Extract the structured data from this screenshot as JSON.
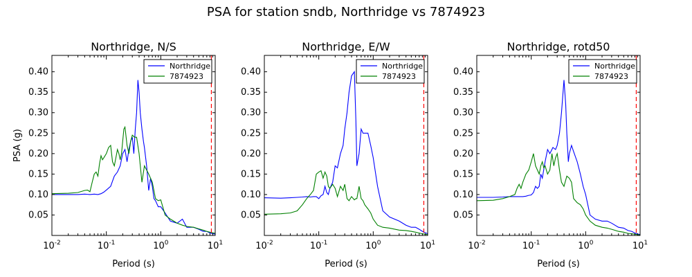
{
  "figure": {
    "suptitle": "PSA for station sndb, Northridge vs 7874923"
  },
  "colors": {
    "series_a": "#0000ff",
    "series_b": "#008000",
    "limit_line": "#ff0000"
  },
  "chart_data": [
    {
      "type": "line",
      "title": "Northridge, N/S",
      "xlabel": "Period (s)",
      "ylabel": "PSA (g)",
      "xscale": "log",
      "xlim": [
        0.01,
        10
      ],
      "ylim": [
        0,
        0.44
      ],
      "xticks": [
        {
          "v": 0.01,
          "base": "10",
          "exp": "-2"
        },
        {
          "v": 0.1,
          "base": "10",
          "exp": "-1"
        },
        {
          "v": 1,
          "base": "10",
          "exp": "0"
        },
        {
          "v": 10,
          "base": "10",
          "exp": "1"
        }
      ],
      "yticks": [
        "0.05",
        "0.10",
        "0.15",
        "0.20",
        "0.25",
        "0.30",
        "0.35",
        "0.40"
      ],
      "legend": {
        "position": "upper-right"
      },
      "vline": {
        "x": 8.5,
        "style": "dashed"
      },
      "series": [
        {
          "name": "Northridge",
          "x": [
            0.01,
            0.02,
            0.03,
            0.04,
            0.05,
            0.06,
            0.07,
            0.08,
            0.09,
            0.1,
            0.12,
            0.14,
            0.16,
            0.18,
            0.2,
            0.22,
            0.24,
            0.26,
            0.28,
            0.3,
            0.32,
            0.34,
            0.36,
            0.38,
            0.4,
            0.42,
            0.45,
            0.48,
            0.5,
            0.55,
            0.6,
            0.65,
            0.7,
            0.75,
            0.8,
            0.9,
            1.0,
            1.2,
            1.5,
            2.0,
            2.5,
            3.0,
            4.0,
            5.0,
            6.0,
            7.0,
            8.0,
            10.0
          ],
          "y": [
            0.1,
            0.1,
            0.1,
            0.101,
            0.1,
            0.101,
            0.1,
            0.102,
            0.106,
            0.111,
            0.12,
            0.145,
            0.155,
            0.17,
            0.2,
            0.21,
            0.18,
            0.21,
            0.23,
            0.24,
            0.2,
            0.26,
            0.3,
            0.38,
            0.35,
            0.3,
            0.26,
            0.23,
            0.215,
            0.17,
            0.11,
            0.14,
            0.12,
            0.09,
            0.085,
            0.07,
            0.07,
            0.055,
            0.035,
            0.03,
            0.04,
            0.02,
            0.02,
            0.015,
            0.01,
            0.01,
            0.006,
            0.003
          ]
        },
        {
          "name": "7874923",
          "x": [
            0.01,
            0.02,
            0.03,
            0.04,
            0.045,
            0.05,
            0.055,
            0.06,
            0.065,
            0.07,
            0.075,
            0.08,
            0.085,
            0.09,
            0.1,
            0.11,
            0.12,
            0.13,
            0.14,
            0.15,
            0.16,
            0.17,
            0.18,
            0.19,
            0.2,
            0.21,
            0.22,
            0.24,
            0.26,
            0.28,
            0.3,
            0.33,
            0.36,
            0.4,
            0.45,
            0.5,
            0.55,
            0.6,
            0.7,
            0.8,
            0.9,
            1.0,
            1.2,
            1.5,
            2.0,
            2.5,
            3.0,
            4.0,
            5.0,
            6.0,
            7.0,
            8.0,
            10.0
          ],
          "y": [
            0.102,
            0.103,
            0.105,
            0.11,
            0.111,
            0.107,
            0.13,
            0.15,
            0.155,
            0.145,
            0.175,
            0.195,
            0.185,
            0.19,
            0.2,
            0.215,
            0.22,
            0.18,
            0.17,
            0.19,
            0.21,
            0.2,
            0.185,
            0.2,
            0.23,
            0.26,
            0.265,
            0.22,
            0.2,
            0.23,
            0.245,
            0.24,
            0.24,
            0.2,
            0.13,
            0.17,
            0.16,
            0.15,
            0.13,
            0.09,
            0.085,
            0.087,
            0.05,
            0.04,
            0.03,
            0.025,
            0.022,
            0.02,
            0.016,
            0.013,
            0.01,
            0.008,
            0.005
          ]
        }
      ]
    },
    {
      "type": "line",
      "title": "Northridge, E/W",
      "xlabel": "Period (s)",
      "ylabel": "",
      "xscale": "log",
      "xlim": [
        0.01,
        10
      ],
      "ylim": [
        0,
        0.44
      ],
      "xticks": [
        {
          "v": 0.01,
          "base": "10",
          "exp": "-2"
        },
        {
          "v": 0.1,
          "base": "10",
          "exp": "-1"
        },
        {
          "v": 1,
          "base": "10",
          "exp": "0"
        },
        {
          "v": 10,
          "base": "10",
          "exp": "1"
        }
      ],
      "yticks": [
        "0.05",
        "0.10",
        "0.15",
        "0.20",
        "0.25",
        "0.30",
        "0.35",
        "0.40"
      ],
      "legend": {
        "position": "upper-right"
      },
      "vline": {
        "x": 8.5,
        "style": "dashed"
      },
      "series": [
        {
          "name": "Northridge",
          "x": [
            0.01,
            0.02,
            0.03,
            0.04,
            0.05,
            0.06,
            0.07,
            0.08,
            0.09,
            0.1,
            0.11,
            0.12,
            0.13,
            0.14,
            0.15,
            0.16,
            0.18,
            0.2,
            0.22,
            0.25,
            0.28,
            0.3,
            0.33,
            0.36,
            0.4,
            0.45,
            0.48,
            0.5,
            0.55,
            0.6,
            0.65,
            0.7,
            0.8,
            0.9,
            1.0,
            1.2,
            1.5,
            2.0,
            3.0,
            4.0,
            5.0,
            6.0,
            7.0,
            8.0,
            10.0
          ],
          "y": [
            0.092,
            0.091,
            0.092,
            0.093,
            0.094,
            0.095,
            0.094,
            0.095,
            0.095,
            0.09,
            0.097,
            0.1,
            0.12,
            0.105,
            0.1,
            0.115,
            0.13,
            0.17,
            0.165,
            0.2,
            0.22,
            0.26,
            0.3,
            0.35,
            0.39,
            0.4,
            0.28,
            0.17,
            0.2,
            0.26,
            0.25,
            0.25,
            0.25,
            0.22,
            0.19,
            0.12,
            0.06,
            0.045,
            0.035,
            0.025,
            0.02,
            0.02,
            0.015,
            0.01,
            0.004
          ]
        },
        {
          "name": "7874923",
          "x": [
            0.01,
            0.02,
            0.03,
            0.04,
            0.05,
            0.06,
            0.07,
            0.08,
            0.09,
            0.1,
            0.11,
            0.12,
            0.13,
            0.14,
            0.15,
            0.16,
            0.18,
            0.2,
            0.22,
            0.25,
            0.28,
            0.3,
            0.33,
            0.36,
            0.4,
            0.45,
            0.48,
            0.5,
            0.55,
            0.6,
            0.65,
            0.7,
            0.8,
            0.9,
            1.0,
            1.2,
            1.5,
            2.0,
            3.0,
            4.0,
            5.0,
            6.0,
            7.0,
            8.0,
            10.0
          ],
          "y": [
            0.052,
            0.053,
            0.055,
            0.06,
            0.075,
            0.09,
            0.1,
            0.11,
            0.15,
            0.155,
            0.158,
            0.14,
            0.155,
            0.145,
            0.12,
            0.115,
            0.125,
            0.115,
            0.095,
            0.12,
            0.11,
            0.125,
            0.09,
            0.085,
            0.095,
            0.087,
            0.09,
            0.09,
            0.12,
            0.09,
            0.085,
            0.075,
            0.065,
            0.055,
            0.04,
            0.025,
            0.02,
            0.018,
            0.013,
            0.012,
            0.01,
            0.008,
            0.006,
            0.004,
            0.002
          ]
        }
      ]
    },
    {
      "type": "line",
      "title": "Northridge, rotd50",
      "xlabel": "Period (s)",
      "ylabel": "",
      "xscale": "log",
      "xlim": [
        0.01,
        10
      ],
      "ylim": [
        0,
        0.44
      ],
      "xticks": [
        {
          "v": 0.01,
          "base": "10",
          "exp": "-2"
        },
        {
          "v": 0.1,
          "base": "10",
          "exp": "-1"
        },
        {
          "v": 1,
          "base": "10",
          "exp": "0"
        },
        {
          "v": 10,
          "base": "10",
          "exp": "1"
        }
      ],
      "yticks": [
        "0.05",
        "0.10",
        "0.15",
        "0.20",
        "0.25",
        "0.30",
        "0.35",
        "0.40"
      ],
      "legend": {
        "position": "upper-right"
      },
      "vline": {
        "x": 8.5,
        "style": "dashed"
      },
      "series": [
        {
          "name": "Northridge",
          "x": [
            0.01,
            0.02,
            0.03,
            0.04,
            0.05,
            0.06,
            0.07,
            0.08,
            0.09,
            0.1,
            0.11,
            0.12,
            0.13,
            0.14,
            0.15,
            0.16,
            0.18,
            0.2,
            0.22,
            0.25,
            0.28,
            0.3,
            0.33,
            0.36,
            0.4,
            0.43,
            0.45,
            0.48,
            0.5,
            0.55,
            0.6,
            0.7,
            0.8,
            0.9,
            1.0,
            1.2,
            1.5,
            2.0,
            2.5,
            3.0,
            4.0,
            5.0,
            6.0,
            7.0,
            8.0,
            10.0
          ],
          "y": [
            0.093,
            0.093,
            0.094,
            0.095,
            0.095,
            0.095,
            0.095,
            0.096,
            0.098,
            0.099,
            0.105,
            0.12,
            0.115,
            0.12,
            0.15,
            0.14,
            0.18,
            0.21,
            0.2,
            0.215,
            0.21,
            0.22,
            0.25,
            0.3,
            0.38,
            0.32,
            0.25,
            0.18,
            0.2,
            0.22,
            0.205,
            0.18,
            0.15,
            0.12,
            0.1,
            0.05,
            0.04,
            0.035,
            0.035,
            0.03,
            0.02,
            0.018,
            0.012,
            0.01,
            0.006,
            0.002
          ]
        },
        {
          "name": "7874923",
          "x": [
            0.01,
            0.02,
            0.03,
            0.04,
            0.05,
            0.055,
            0.06,
            0.065,
            0.07,
            0.08,
            0.09,
            0.1,
            0.11,
            0.12,
            0.13,
            0.14,
            0.15,
            0.16,
            0.17,
            0.18,
            0.2,
            0.22,
            0.24,
            0.26,
            0.28,
            0.3,
            0.33,
            0.36,
            0.4,
            0.45,
            0.5,
            0.55,
            0.6,
            0.7,
            0.8,
            0.9,
            1.0,
            1.2,
            1.5,
            2.0,
            2.5,
            3.0,
            4.0,
            5.0,
            6.0,
            7.0,
            8.0,
            10.0
          ],
          "y": [
            0.085,
            0.086,
            0.09,
            0.095,
            0.1,
            0.115,
            0.125,
            0.115,
            0.13,
            0.15,
            0.16,
            0.18,
            0.2,
            0.17,
            0.16,
            0.15,
            0.17,
            0.18,
            0.165,
            0.17,
            0.15,
            0.16,
            0.2,
            0.17,
            0.19,
            0.2,
            0.16,
            0.13,
            0.12,
            0.145,
            0.14,
            0.13,
            0.09,
            0.08,
            0.075,
            0.065,
            0.05,
            0.035,
            0.025,
            0.02,
            0.018,
            0.015,
            0.01,
            0.008,
            0.005,
            0.004,
            0.003,
            0.001
          ]
        }
      ]
    }
  ]
}
